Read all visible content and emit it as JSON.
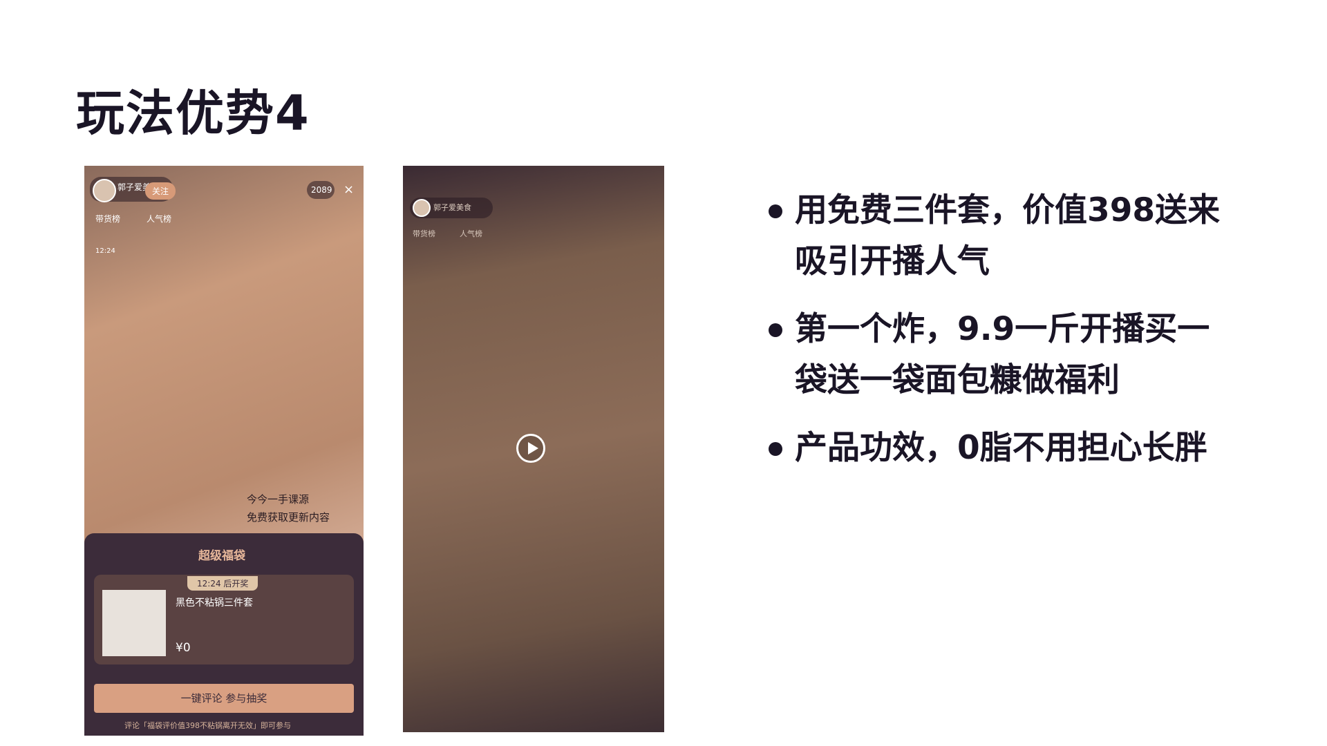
{
  "title": "玩法优势4",
  "screenshots": [
    {
      "streamer": "郭子爱美食",
      "follow": "关注",
      "viewers": "2089",
      "tabs": [
        "带货榜",
        "人气榜"
      ],
      "timer": "12:24",
      "overlay": [
        "今今一手课源",
        "免费获取更新内容"
      ],
      "panel": {
        "title": "超级福袋",
        "draw_time": "12:24 后开奖",
        "product": "黑色不粘锅三件套",
        "price": "¥0",
        "button": "一键评论 参与抽奖",
        "note": "评论「福袋评价值398不粘锅离开无效」即可参与"
      }
    },
    {
      "streamer": "郭子爱美食",
      "tabs": [
        "带货榜",
        "人气榜"
      ]
    }
  ],
  "bullets": [
    "用免费三件套，价值398送来吸引开播人气",
    "第一个炸，9.9一斤开播买一袋送一袋面包糠做福利",
    "产品功效，0脂不用担心长胖"
  ]
}
